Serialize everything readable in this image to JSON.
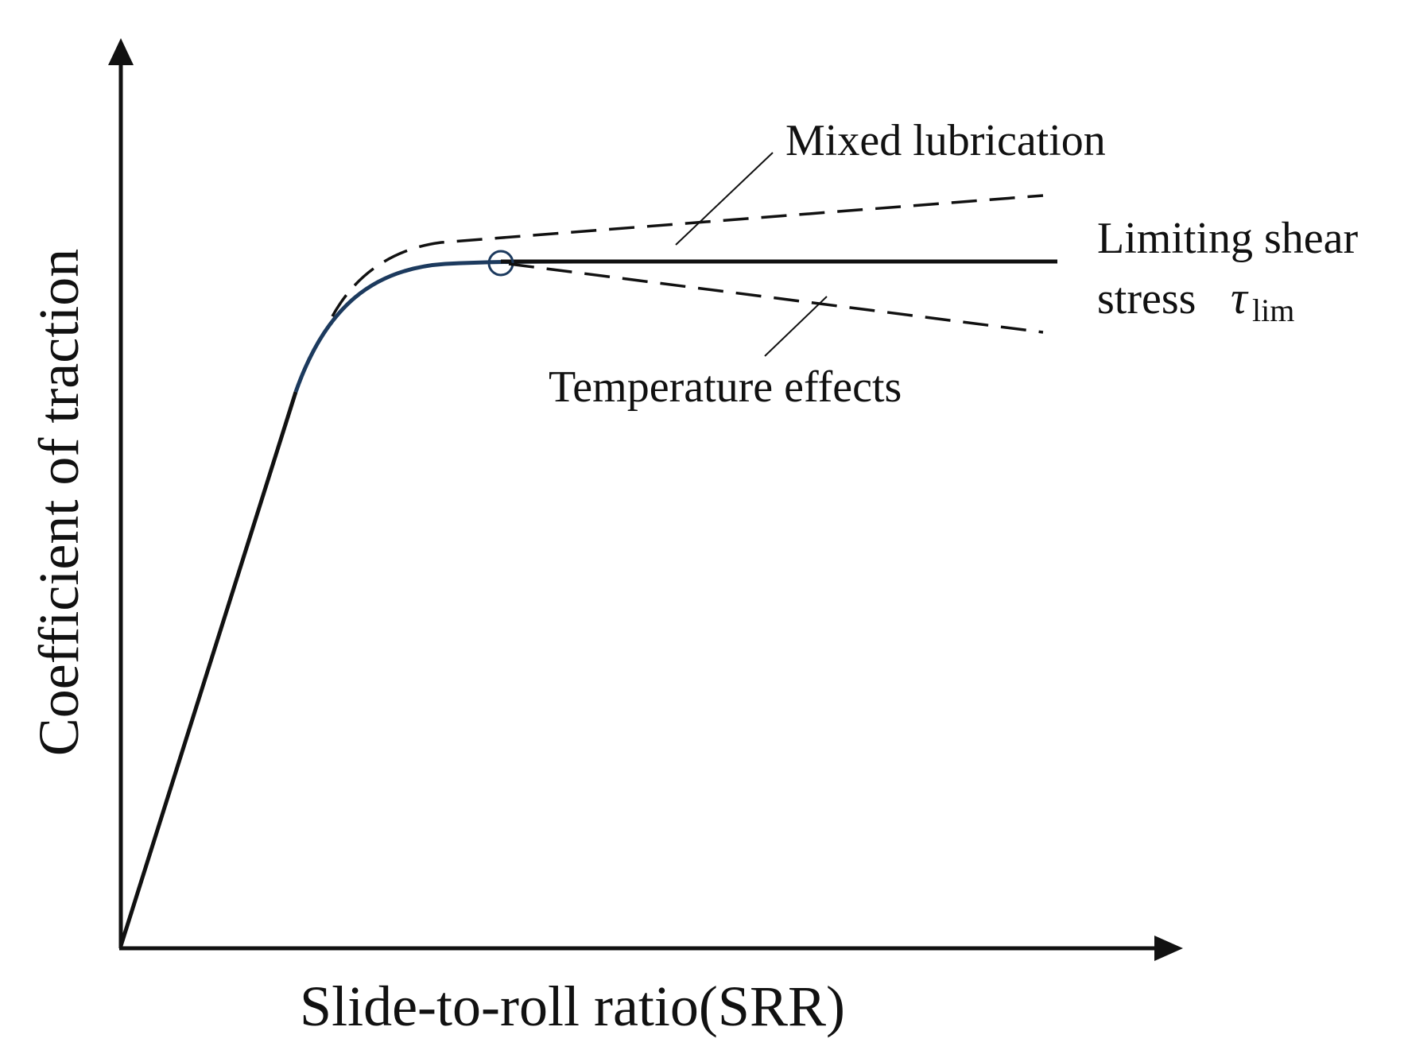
{
  "axes": {
    "x_label": "Slide-to-roll ratio(SRR)",
    "y_label": "Coefficient of traction"
  },
  "annotations": {
    "mixed_lubrication": "Mixed lubrication",
    "limiting_shear_line1": "Limiting shear",
    "limiting_shear_line2": "stress",
    "tau_symbol": "τ",
    "tau_subscript": "lim",
    "temperature_effects": "Temperature effects"
  },
  "colors": {
    "line": "#111111",
    "transition_curve": "#1c3a5e",
    "background": "#ffffff"
  }
}
